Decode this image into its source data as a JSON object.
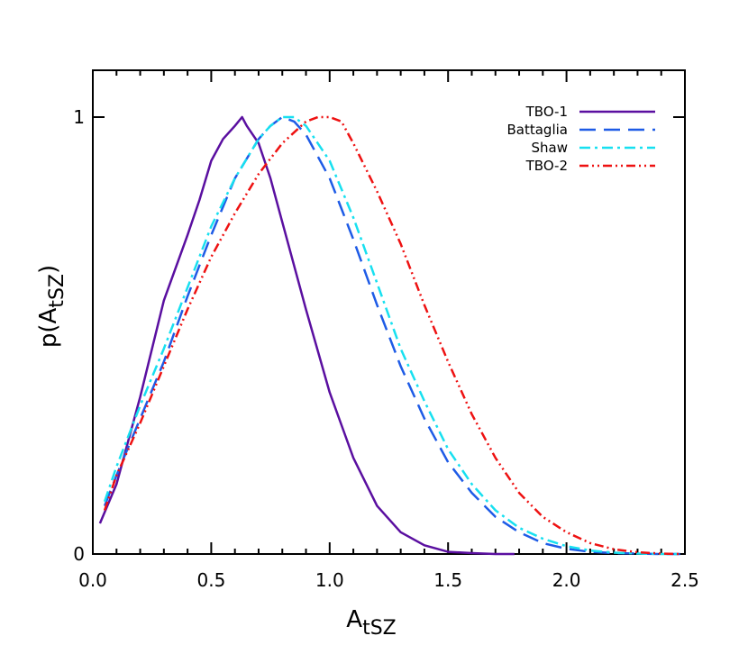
{
  "chart_data": {
    "type": "line",
    "title": "",
    "xlabel": {
      "main": "A",
      "sub": "tSZ"
    },
    "ylabel": {
      "pre": "p(A",
      "sub": "tSZ",
      "post": ")"
    },
    "xlim": [
      0.0,
      2.5
    ],
    "ylim": [
      0,
      1.1
    ],
    "xticks": [
      0.0,
      0.5,
      1.0,
      1.5,
      2.0,
      2.5
    ],
    "xtick_labels": [
      "0.0",
      "0.5",
      "1.0",
      "1.5",
      "2.0",
      "2.5"
    ],
    "yticks": [
      0,
      1
    ],
    "ytick_labels": [
      "0",
      "1"
    ],
    "legend_position": "top-right",
    "series": [
      {
        "name": "TBO-1",
        "color": "#5a0fa0",
        "dash": "solid",
        "x": [
          0.03,
          0.1,
          0.2,
          0.3,
          0.4,
          0.45,
          0.5,
          0.55,
          0.6,
          0.63,
          0.65,
          0.7,
          0.75,
          0.8,
          0.9,
          1.0,
          1.1,
          1.2,
          1.3,
          1.4,
          1.5,
          1.6,
          1.7,
          1.78
        ],
        "y": [
          0.07,
          0.16,
          0.36,
          0.58,
          0.73,
          0.81,
          0.9,
          0.95,
          0.98,
          1.0,
          0.98,
          0.94,
          0.86,
          0.76,
          0.56,
          0.37,
          0.22,
          0.11,
          0.05,
          0.02,
          0.005,
          0.002,
          0.0,
          0.0
        ]
      },
      {
        "name": "Battaglia",
        "color": "#1e5be6",
        "dash": "long-dash",
        "x": [
          0.05,
          0.1,
          0.2,
          0.3,
          0.4,
          0.5,
          0.6,
          0.7,
          0.75,
          0.8,
          0.85,
          0.9,
          1.0,
          1.1,
          1.2,
          1.3,
          1.4,
          1.5,
          1.6,
          1.7,
          1.8,
          1.9,
          2.0,
          2.1,
          2.2,
          2.3,
          2.4,
          2.48
        ],
        "y": [
          0.11,
          0.18,
          0.31,
          0.44,
          0.59,
          0.73,
          0.86,
          0.95,
          0.98,
          1.0,
          0.99,
          0.96,
          0.86,
          0.72,
          0.57,
          0.43,
          0.31,
          0.21,
          0.14,
          0.085,
          0.05,
          0.025,
          0.012,
          0.005,
          0.002,
          0.001,
          0.0,
          0.0
        ]
      },
      {
        "name": "Shaw",
        "color": "#17e0f0",
        "dash": "dash-dot",
        "x": [
          0.05,
          0.1,
          0.2,
          0.3,
          0.4,
          0.5,
          0.6,
          0.7,
          0.75,
          0.8,
          0.85,
          0.9,
          1.0,
          1.1,
          1.2,
          1.3,
          1.4,
          1.5,
          1.6,
          1.7,
          1.8,
          1.9,
          2.0,
          2.1,
          2.2,
          2.3,
          2.4,
          2.48
        ],
        "y": [
          0.12,
          0.2,
          0.34,
          0.47,
          0.61,
          0.75,
          0.86,
          0.95,
          0.98,
          1.0,
          1.0,
          0.98,
          0.9,
          0.77,
          0.62,
          0.47,
          0.35,
          0.24,
          0.16,
          0.1,
          0.06,
          0.035,
          0.018,
          0.008,
          0.003,
          0.001,
          0.0,
          0.0
        ]
      },
      {
        "name": "TBO-2",
        "color": "#ee1111",
        "dash": "dash-dot-dot",
        "x": [
          0.05,
          0.1,
          0.2,
          0.3,
          0.4,
          0.5,
          0.6,
          0.7,
          0.8,
          0.9,
          0.95,
          1.0,
          1.05,
          1.1,
          1.2,
          1.3,
          1.4,
          1.5,
          1.6,
          1.7,
          1.8,
          1.9,
          2.0,
          2.1,
          2.2,
          2.3,
          2.4,
          2.48
        ],
        "y": [
          0.1,
          0.18,
          0.3,
          0.43,
          0.56,
          0.68,
          0.78,
          0.87,
          0.94,
          0.99,
          1.0,
          1.0,
          0.99,
          0.94,
          0.83,
          0.71,
          0.57,
          0.44,
          0.32,
          0.22,
          0.14,
          0.085,
          0.05,
          0.025,
          0.011,
          0.004,
          0.001,
          0.0
        ]
      }
    ]
  }
}
